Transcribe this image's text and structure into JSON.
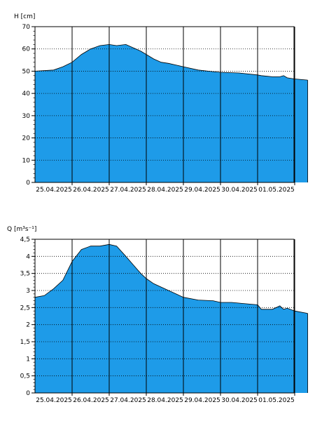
{
  "charts": [
    {
      "id": "water-level",
      "ylabel": "H [cm]",
      "type": "area",
      "color": "#1e9be8",
      "ylim": [
        0,
        70
      ],
      "y_ticks": [
        "0",
        "10",
        "20",
        "30",
        "40",
        "50",
        "60",
        "70"
      ],
      "y_tick_values": [
        0,
        10,
        20,
        30,
        40,
        50,
        60,
        70
      ],
      "y_minor_step": 2,
      "x_ticks": [
        "25.04.2025",
        "26.04.2025",
        "27.04.2025",
        "28.04.2025",
        "29.04.2025",
        "30.04.2025",
        "01.05.2025"
      ],
      "grid": true,
      "x_range_days": [
        -1,
        6.6
      ],
      "series": [
        {
          "x": [
            -1,
            -0.5,
            -0.25,
            0,
            0.25,
            0.5,
            0.75,
            1,
            1.2,
            1.45,
            1.65,
            1.85,
            2,
            2.2,
            2.4,
            2.6,
            3,
            3.4,
            3.8,
            4,
            4.5,
            5,
            5.1,
            5.4,
            5.6,
            5.7,
            5.8,
            6,
            6.35
          ],
          "y": [
            50,
            50.5,
            52,
            54,
            57.5,
            60,
            61.5,
            62,
            61.5,
            62,
            60.5,
            59,
            57.5,
            55.5,
            54,
            53.5,
            52,
            50.5,
            49.8,
            49.5,
            49.2,
            48.3,
            48,
            47.5,
            47.5,
            48,
            47,
            46.5,
            46
          ]
        }
      ]
    },
    {
      "id": "discharge",
      "ylabel": "Q [m³s⁻¹]",
      "type": "area",
      "color": "#1e9be8",
      "ylim": [
        0,
        4.5
      ],
      "y_ticks": [
        "0",
        "0,5",
        "1",
        "1,5",
        "2",
        "2,5",
        "3",
        "3,5",
        "4",
        "4,5"
      ],
      "y_tick_values": [
        0,
        0.5,
        1,
        1.5,
        2,
        2.5,
        3,
        3.5,
        4,
        4.5
      ],
      "y_minor_step": 0.1,
      "x_ticks": [
        "25.04.2025",
        "26.04.2025",
        "27.04.2025",
        "28.04.2025",
        "29.04.2025",
        "30.04.2025",
        "01.05.2025"
      ],
      "grid": true,
      "x_range_days": [
        -1,
        6.6
      ],
      "series": [
        {
          "x": [
            -1,
            -0.75,
            -0.5,
            -0.25,
            0,
            0.25,
            0.5,
            0.75,
            1,
            1.2,
            1.45,
            1.65,
            1.85,
            2,
            2.2,
            2.4,
            2.6,
            3,
            3.4,
            3.8,
            4,
            4.3,
            4.6,
            5,
            5.1,
            5.4,
            5.6,
            5.7,
            5.8,
            6,
            6.35
          ],
          "y": [
            2.8,
            2.85,
            3.05,
            3.3,
            3.85,
            4.2,
            4.3,
            4.3,
            4.35,
            4.3,
            4.0,
            3.75,
            3.5,
            3.35,
            3.2,
            3.1,
            3.0,
            2.8,
            2.72,
            2.7,
            2.65,
            2.65,
            2.62,
            2.58,
            2.45,
            2.45,
            2.55,
            2.45,
            2.48,
            2.4,
            2.33
          ]
        }
      ]
    }
  ]
}
